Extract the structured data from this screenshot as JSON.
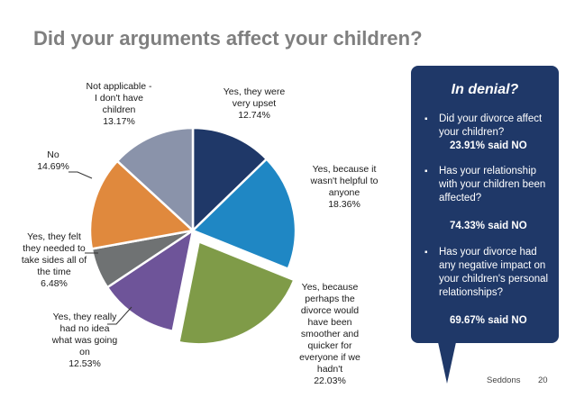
{
  "title": "Did your arguments affect your children?",
  "chart_data": {
    "type": "pie",
    "unit": "%",
    "slices": [
      {
        "label": "Yes, they were very upset",
        "value": 12.74,
        "color": "#1f3868",
        "exploded": false
      },
      {
        "label": "Yes, because it wasn't helpful to anyone",
        "value": 18.36,
        "color": "#1f87c4",
        "exploded": false
      },
      {
        "label": "Yes, because perhaps the divorce would have been smoother and quicker for everyone if we hadn't",
        "value": 22.03,
        "color": "#7f9b48",
        "exploded": true
      },
      {
        "label": "Yes, they really had no idea what was going on",
        "value": 12.53,
        "color": "#6e5499",
        "exploded": false
      },
      {
        "label": "Yes, they felt they needed to take sides all of the time",
        "value": 6.48,
        "color": "#6f7273",
        "exploded": false
      },
      {
        "label": "No",
        "value": 14.69,
        "color": "#e0893d",
        "exploded": false
      },
      {
        "label": "Not applicable - I don't have children",
        "value": 13.17,
        "color": "#8a93aa",
        "exploded": false
      }
    ],
    "labels": [
      {
        "text": "Yes, they were\nvery upset\n12.74%"
      },
      {
        "text": "Yes, because it\nwasn't helpful to\nanyone\n18.36%"
      },
      {
        "text": "Yes, because\nperhaps the\ndivorce would\nhave been\nsmoother and\nquicker for\neveryone if we\nhadn't\n22.03%"
      },
      {
        "text": "Yes, they really\nhad no idea\nwhat was going\non\n12.53%"
      },
      {
        "text": "Yes, they felt\nthey needed to\ntake sides all of\nthe time\n6.48%"
      },
      {
        "text": "No\n14.69%"
      },
      {
        "text": "Not applicable -\nI don't have\nchildren\n13.17%"
      }
    ]
  },
  "callout": {
    "title": "In denial?",
    "bullet": "▪",
    "items": [
      {
        "text": "Did your divorce affect your children?",
        "answer": "23.91% said NO"
      },
      {
        "text": "Has your relationship with your children been affected?",
        "answer": "74.33% said NO"
      },
      {
        "text": "Has your divorce had any negative impact on your children's personal relationships?",
        "answer": "69.67% said NO"
      }
    ]
  },
  "footer": {
    "source": "Seddons",
    "page": "20"
  }
}
